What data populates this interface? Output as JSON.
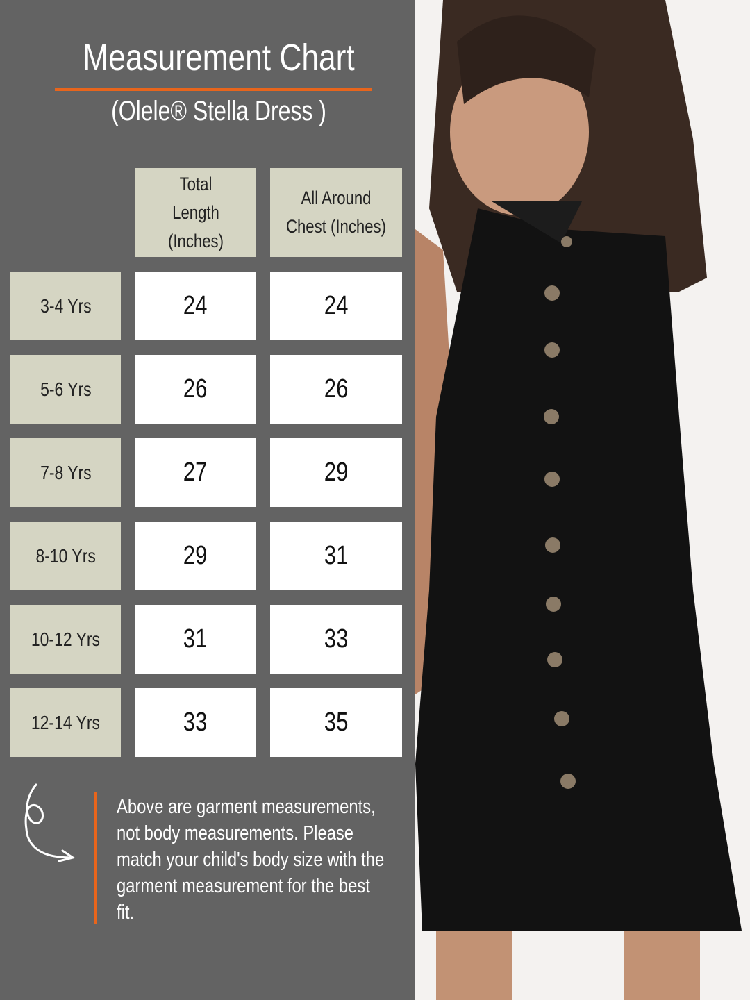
{
  "title": "Measurement Chart",
  "subtitle": "(Olele® Stella Dress )",
  "colors": {
    "panel": "#636363",
    "accent": "#e8651c",
    "header_cell": "#d5d5c3"
  },
  "table": {
    "headers": [
      "Total Length (Inches)",
      "All Around Chest (Inches)"
    ],
    "rows": [
      {
        "size": "3-4 Yrs",
        "length": "24",
        "chest": "24"
      },
      {
        "size": "5-6 Yrs",
        "length": "26",
        "chest": "26"
      },
      {
        "size": "7-8 Yrs",
        "length": "27",
        "chest": "29"
      },
      {
        "size": "8-10 Yrs",
        "length": "29",
        "chest": "31"
      },
      {
        "size": "10-12 Yrs",
        "length": "31",
        "chest": "33"
      },
      {
        "size": "12-14 Yrs",
        "length": "33",
        "chest": "35"
      }
    ]
  },
  "note": "Above are garment measurements, not body measurements. Please match your child's body size with the garment measurement for the best fit.",
  "icons": [
    "curly-arrow-icon"
  ]
}
